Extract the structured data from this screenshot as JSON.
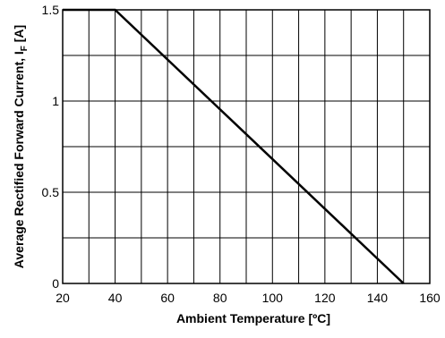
{
  "chart_data": {
    "type": "line",
    "title": "",
    "xlabel": "Ambient Temperature [ºC]",
    "ylabel_main": "Average Rectified Forward Current, I",
    "ylabel_sub": "F",
    "ylabel_unit": " [A]",
    "xlim": [
      20,
      160
    ],
    "ylim": [
      0,
      1.5
    ],
    "x_ticks": [
      20,
      40,
      60,
      80,
      100,
      120,
      140,
      160
    ],
    "x_tick_labels": [
      "20",
      "40",
      "60",
      "80",
      "100",
      "120",
      "140",
      "160"
    ],
    "y_ticks": [
      0,
      0.5,
      1,
      1.5
    ],
    "y_tick_labels": [
      "0",
      "0.5",
      "1",
      "1.5"
    ],
    "x_grid_step": 10,
    "y_grid_step": 0.25,
    "grid": true,
    "series": [
      {
        "x": [
          20,
          40,
          150
        ],
        "y": [
          1.5,
          1.5,
          0
        ],
        "color": "#000000"
      }
    ]
  }
}
